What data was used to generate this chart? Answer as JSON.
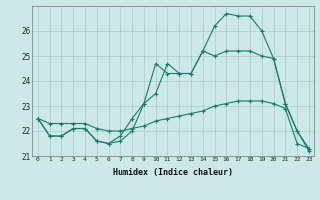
{
  "xlabel": "Humidex (Indice chaleur)",
  "bg_color": "#cce8e8",
  "grid_color": "#aacccc",
  "line_color": "#1a7a6e",
  "xlim": [
    -0.5,
    23.4
  ],
  "ylim": [
    21.0,
    27.0
  ],
  "yticks": [
    21,
    22,
    23,
    24,
    25,
    26
  ],
  "xticks": [
    0,
    1,
    2,
    3,
    4,
    5,
    6,
    7,
    8,
    9,
    10,
    11,
    12,
    13,
    14,
    15,
    16,
    17,
    18,
    19,
    20,
    21,
    22,
    23
  ],
  "line1_x": [
    0,
    1,
    2,
    3,
    4,
    5,
    6,
    7,
    8,
    9,
    10,
    11,
    12,
    13,
    14,
    15,
    16,
    17,
    18,
    19,
    20,
    21,
    22,
    23
  ],
  "line1_y": [
    22.5,
    21.8,
    21.8,
    22.1,
    22.1,
    21.6,
    21.5,
    21.6,
    22.0,
    23.1,
    23.5,
    24.7,
    24.3,
    24.3,
    25.2,
    26.2,
    26.7,
    26.6,
    26.6,
    26.0,
    24.9,
    23.1,
    22.0,
    21.2
  ],
  "line2_x": [
    0,
    1,
    2,
    3,
    4,
    5,
    6,
    7,
    8,
    9,
    10,
    11,
    12,
    13,
    14,
    15,
    16,
    17,
    18,
    19,
    20,
    21,
    22,
    23
  ],
  "line2_y": [
    22.5,
    21.8,
    21.8,
    22.1,
    22.1,
    21.6,
    21.5,
    21.8,
    22.5,
    23.1,
    24.7,
    24.3,
    24.3,
    24.3,
    25.2,
    25.0,
    25.2,
    25.2,
    25.2,
    25.0,
    24.9,
    23.1,
    22.0,
    21.3
  ],
  "line3_x": [
    0,
    1,
    2,
    3,
    4,
    5,
    6,
    7,
    8,
    9,
    10,
    11,
    12,
    13,
    14,
    15,
    16,
    17,
    18,
    19,
    20,
    21,
    22,
    23
  ],
  "line3_y": [
    22.5,
    22.3,
    22.3,
    22.3,
    22.3,
    22.1,
    22.0,
    22.0,
    22.1,
    22.2,
    22.4,
    22.5,
    22.6,
    22.7,
    22.8,
    23.0,
    23.1,
    23.2,
    23.2,
    23.2,
    23.1,
    22.9,
    21.5,
    21.3
  ]
}
